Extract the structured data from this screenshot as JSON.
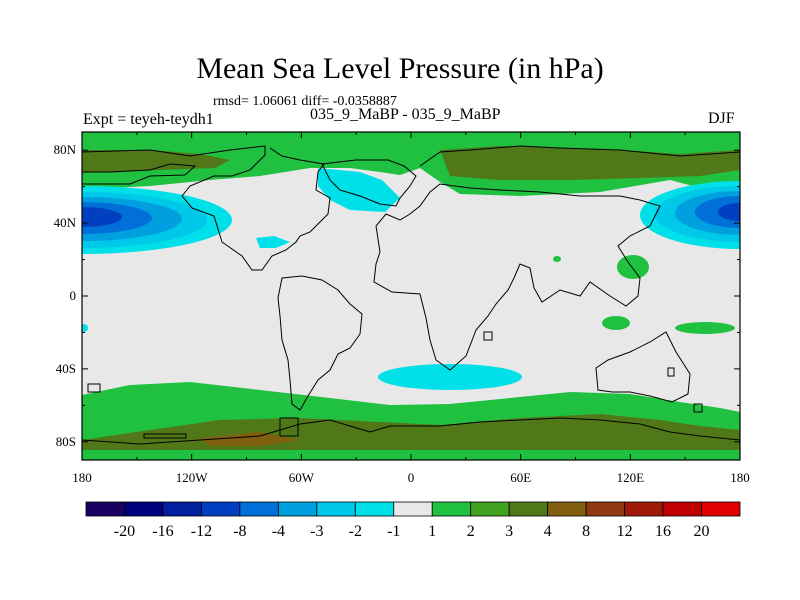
{
  "chart_data": {
    "type": "heatmap",
    "title": "Mean Sea Level Pressure (in hPa)",
    "stats_text": "rmsd= 1.06061 diff= -0.0358887",
    "left_label": "Expt = teyeh-teydh1",
    "center_label": "035_9_MaBP - 035_9_MaBP",
    "right_label": "DJF",
    "x_ticks": [
      "180",
      "120W",
      "60W",
      "0",
      "60E",
      "120E",
      "180"
    ],
    "y_ticks": [
      "80N",
      "40N",
      "0",
      "40S",
      "80S"
    ],
    "x_range": [
      -180,
      180
    ],
    "y_range": [
      -90,
      90
    ],
    "colorbar": {
      "levels": [
        "-20",
        "-16",
        "-12",
        "-8",
        "-4",
        "-3",
        "-2",
        "-1",
        "1",
        "2",
        "3",
        "4",
        "8",
        "12",
        "16",
        "20"
      ],
      "colors": [
        "#1a0060",
        "#00007f",
        "#0020a0",
        "#0040c0",
        "#0070d8",
        "#00a0e0",
        "#00c8e8",
        "#00e0e8",
        "#e8e8e8",
        "#20c040",
        "#40a020",
        "#507818",
        "#806010",
        "#903810",
        "#a01808",
        "#c00000",
        "#e00000"
      ]
    }
  }
}
